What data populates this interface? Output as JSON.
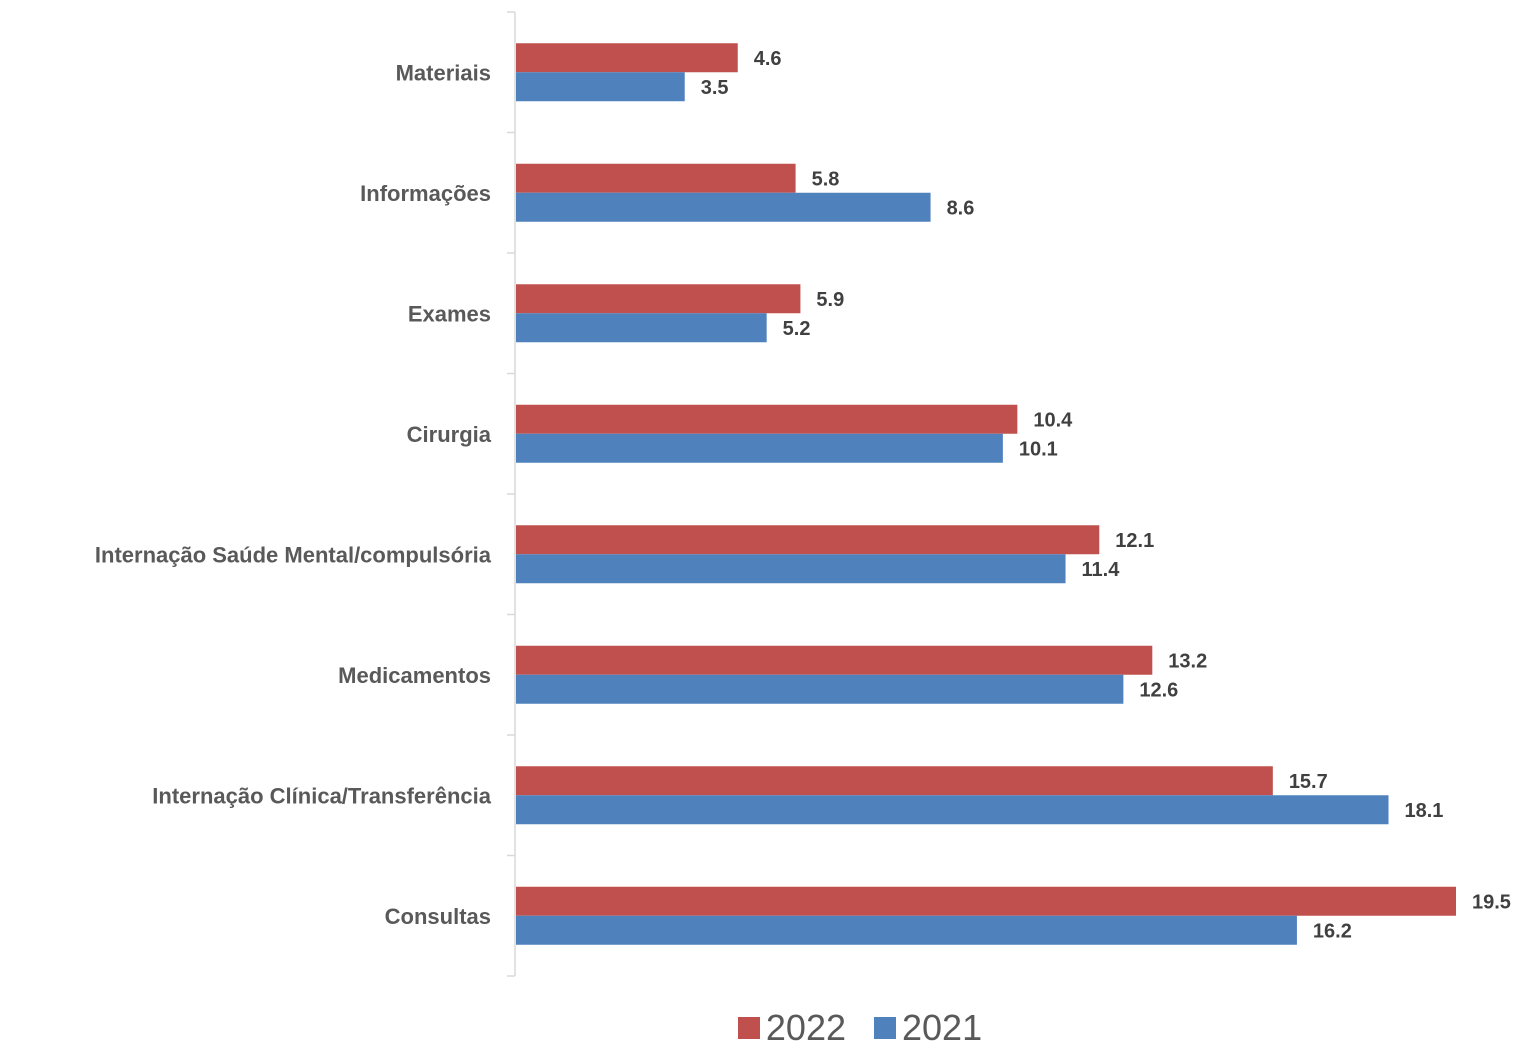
{
  "chart_data": {
    "type": "bar",
    "orientation": "horizontal",
    "categories": [
      "Materiais",
      "Informações",
      "Exames",
      "Cirurgia",
      "Internação Saúde Mental/compulsória",
      "Medicamentos",
      "Internação Clínica/Transferência",
      "Consultas"
    ],
    "series": [
      {
        "name": "2022",
        "color": "#c0504d",
        "values": [
          4.6,
          5.8,
          5.9,
          10.4,
          12.1,
          13.2,
          15.7,
          19.5
        ],
        "labels": [
          "4.6",
          "5.8",
          "5.9",
          "10.4",
          "12.1",
          "13.2",
          "15.7",
          "19.5"
        ]
      },
      {
        "name": "2021",
        "color": "#4f81bd",
        "values": [
          3.5,
          8.6,
          5.2,
          10.1,
          11.4,
          12.6,
          18.1,
          16.2
        ],
        "labels": [
          "3.5",
          "8.6",
          "5.2",
          "10.1",
          "11.4",
          "12.6",
          "18.1",
          "16.2"
        ]
      }
    ],
    "xlim": [
      0,
      20
    ],
    "grid": false,
    "legend_position": "bottom"
  }
}
